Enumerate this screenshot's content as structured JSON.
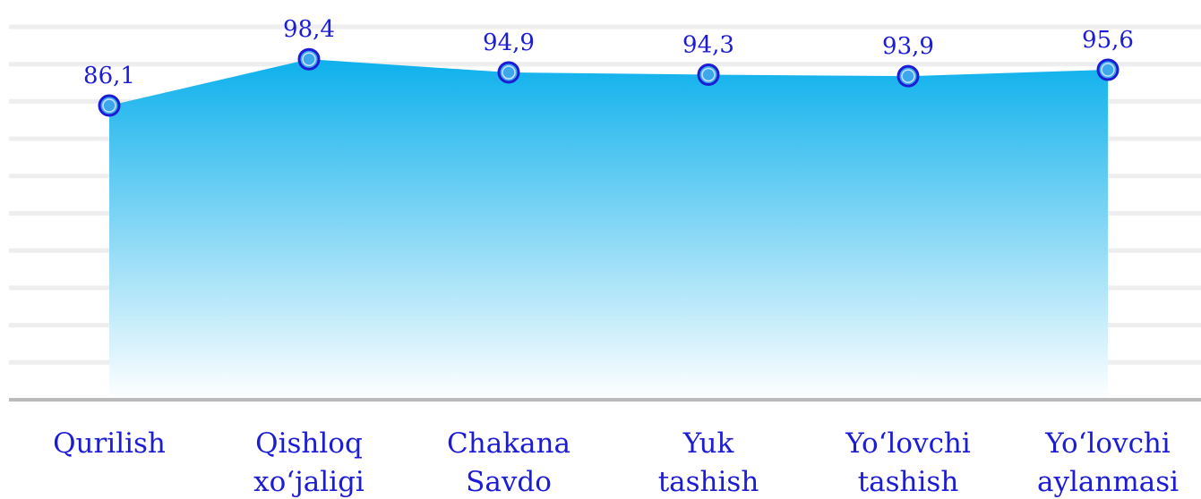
{
  "chart_data": {
    "type": "area",
    "categories": [
      [
        "Qurilish"
      ],
      [
        "Qishloq",
        "xo‘jaligi"
      ],
      [
        "Chakana",
        "Savdo"
      ],
      [
        "Yuk",
        "tashish"
      ],
      [
        "Yo‘lovchi",
        "tashish"
      ],
      [
        "Yo‘lovchi",
        "aylanmasi"
      ]
    ],
    "values": [
      86.1,
      98.4,
      94.9,
      94.3,
      93.9,
      95.6
    ],
    "value_labels": [
      "86,1",
      "98,4",
      "94,9",
      "94,3",
      "93,9",
      "95,6"
    ],
    "color": "#0db0ec",
    "marker_color": "#1c1cd6",
    "ylim": [
      8,
      107
    ],
    "grid": true
  }
}
